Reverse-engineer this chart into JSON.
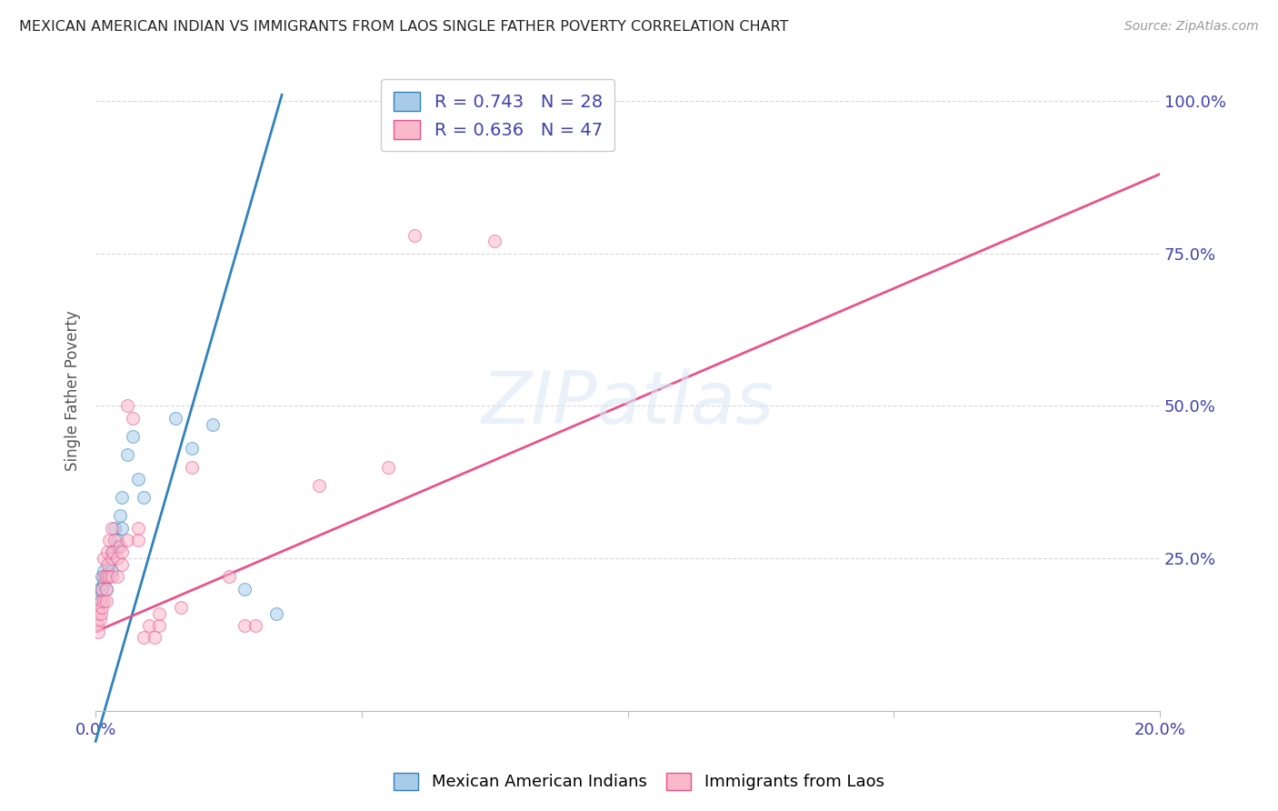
{
  "title": "MEXICAN AMERICAN INDIAN VS IMMIGRANTS FROM LAOS SINGLE FATHER POVERTY CORRELATION CHART",
  "source": "Source: ZipAtlas.com",
  "ylabel": "Single Father Poverty",
  "xlim": [
    0.0,
    0.2
  ],
  "ylim": [
    0.0,
    1.05
  ],
  "ytick_labels": [
    "25.0%",
    "50.0%",
    "75.0%",
    "100.0%"
  ],
  "ytick_positions": [
    0.25,
    0.5,
    0.75,
    1.0
  ],
  "blue_R": 0.743,
  "blue_N": 28,
  "pink_R": 0.636,
  "pink_N": 47,
  "blue_color": "#a8cce8",
  "pink_color": "#f9b8cb",
  "blue_line_color": "#3182bd",
  "pink_line_color": "#e8538a",
  "watermark": "ZIPatlas",
  "legend_blue_label": "R = 0.743   N = 28",
  "legend_pink_label": "R = 0.636   N = 47",
  "blue_scatter_x": [
    0.0005,
    0.0008,
    0.001,
    0.001,
    0.0012,
    0.0015,
    0.0015,
    0.002,
    0.002,
    0.0022,
    0.0025,
    0.003,
    0.003,
    0.0035,
    0.004,
    0.004,
    0.0045,
    0.005,
    0.005,
    0.006,
    0.007,
    0.008,
    0.009,
    0.015,
    0.018,
    0.022,
    0.028,
    0.034
  ],
  "blue_scatter_y": [
    0.2,
    0.19,
    0.18,
    0.2,
    0.22,
    0.21,
    0.23,
    0.2,
    0.22,
    0.22,
    0.24,
    0.23,
    0.26,
    0.3,
    0.27,
    0.28,
    0.32,
    0.35,
    0.3,
    0.42,
    0.45,
    0.38,
    0.35,
    0.48,
    0.43,
    0.47,
    0.2,
    0.16
  ],
  "pink_scatter_x": [
    0.0003,
    0.0005,
    0.0005,
    0.0008,
    0.001,
    0.001,
    0.0012,
    0.0012,
    0.0015,
    0.0015,
    0.0015,
    0.002,
    0.002,
    0.002,
    0.0022,
    0.0022,
    0.0025,
    0.0025,
    0.003,
    0.003,
    0.003,
    0.0032,
    0.0035,
    0.004,
    0.004,
    0.0045,
    0.005,
    0.005,
    0.006,
    0.006,
    0.007,
    0.008,
    0.008,
    0.009,
    0.01,
    0.011,
    0.012,
    0.012,
    0.016,
    0.018,
    0.025,
    0.028,
    0.03,
    0.042,
    0.055,
    0.06,
    0.075
  ],
  "pink_scatter_y": [
    0.14,
    0.13,
    0.16,
    0.15,
    0.16,
    0.18,
    0.17,
    0.2,
    0.18,
    0.22,
    0.25,
    0.18,
    0.2,
    0.22,
    0.24,
    0.26,
    0.22,
    0.28,
    0.22,
    0.25,
    0.3,
    0.26,
    0.28,
    0.22,
    0.25,
    0.27,
    0.24,
    0.26,
    0.28,
    0.5,
    0.48,
    0.28,
    0.3,
    0.12,
    0.14,
    0.12,
    0.14,
    0.16,
    0.17,
    0.4,
    0.22,
    0.14,
    0.14,
    0.37,
    0.4,
    0.78,
    0.77
  ],
  "blue_line_x": [
    0.0,
    0.035
  ],
  "blue_line_y": [
    -0.05,
    1.01
  ],
  "pink_line_x": [
    0.0,
    0.2
  ],
  "pink_line_y": [
    0.13,
    0.88
  ],
  "background_color": "#ffffff",
  "grid_color": "#d8d8d8",
  "axis_color": "#4040b0",
  "marker_size": 100,
  "marker_alpha": 0.55,
  "title_fontsize": 11.5,
  "source_fontsize": 10,
  "tick_fontsize": 13,
  "ylabel_fontsize": 12
}
